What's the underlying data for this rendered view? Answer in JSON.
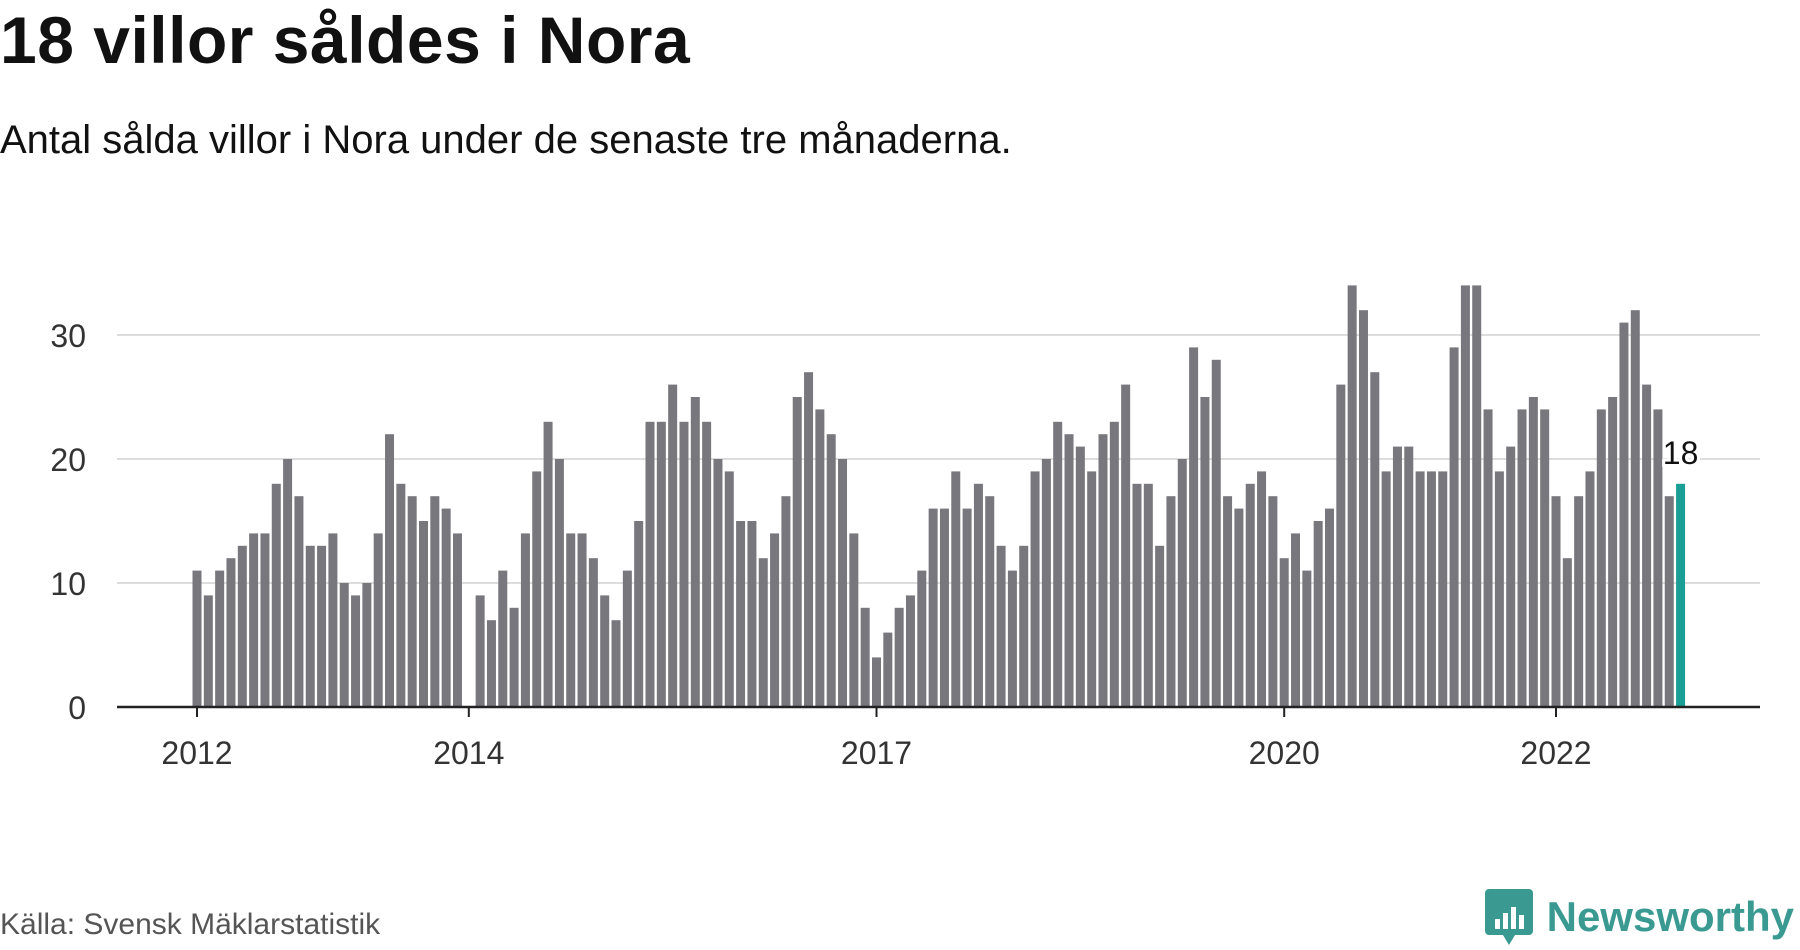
{
  "header": {
    "title": "18 villor såldes i Nora",
    "subtitle": "Antal sålda villor i Nora under de senaste tre månaderna."
  },
  "footer": {
    "source": "Källa: Svensk Mäklarstatistik",
    "brand": "Newsworthy",
    "brand_icon": "bar-chart-speech-bubble-icon"
  },
  "colors": {
    "bar": "#77777d",
    "highlight": "#1a9e96",
    "grid": "#dddddd",
    "axis": "#222222",
    "brand": "#3a9a92"
  },
  "chart_data": {
    "type": "bar",
    "title": "18 villor såldes i Nora",
    "subtitle": "Antal sålda villor i Nora under de senaste tre månaderna.",
    "xlabel": "",
    "ylabel": "",
    "ylim": [
      0,
      35
    ],
    "yticks": [
      0,
      10,
      20,
      30
    ],
    "grid": true,
    "xtick_labels": [
      {
        "label": "2012",
        "index": 0
      },
      {
        "label": "2014",
        "index": 24
      },
      {
        "label": "2017",
        "index": 60
      },
      {
        "label": "2020",
        "index": 96
      },
      {
        "label": "2022",
        "index": 120
      }
    ],
    "highlight_label": "18",
    "values": [
      11,
      9,
      11,
      12,
      13,
      14,
      14,
      18,
      20,
      17,
      13,
      13,
      14,
      10,
      9,
      10,
      14,
      22,
      18,
      17,
      15,
      17,
      16,
      14,
      0,
      9,
      7,
      11,
      8,
      14,
      19,
      23,
      20,
      14,
      14,
      12,
      9,
      7,
      11,
      15,
      23,
      23,
      26,
      23,
      25,
      23,
      20,
      19,
      15,
      15,
      12,
      14,
      17,
      25,
      27,
      24,
      22,
      20,
      14,
      8,
      4,
      6,
      8,
      9,
      11,
      16,
      16,
      19,
      16,
      18,
      17,
      13,
      11,
      13,
      19,
      20,
      23,
      22,
      21,
      19,
      22,
      23,
      26,
      18,
      18,
      13,
      17,
      20,
      29,
      25,
      28,
      17,
      16,
      18,
      19,
      17,
      12,
      14,
      11,
      15,
      16,
      26,
      34,
      32,
      27,
      19,
      21,
      21,
      19,
      19,
      19,
      29,
      34,
      34,
      24,
      19,
      21,
      24,
      25,
      24,
      17,
      12,
      17,
      19,
      24,
      25,
      31,
      32,
      26,
      24,
      17,
      18
    ]
  }
}
